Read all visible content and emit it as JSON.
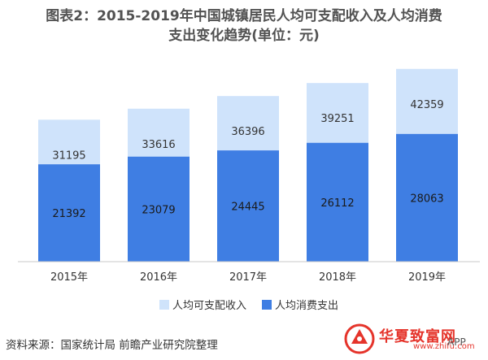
{
  "title": {
    "line1": "图表2：2015-2019年中国城镇居民人均可支配收入及人均消费",
    "line2": "支出变化趋势(单位：元)"
  },
  "chart_data": {
    "type": "bar",
    "categories": [
      "2015年",
      "2016年",
      "2017年",
      "2018年",
      "2019年"
    ],
    "series": [
      {
        "name": "人均可支配收入",
        "values": [
          31195,
          33616,
          36396,
          39251,
          42359
        ],
        "color": "#cfe3fb"
      },
      {
        "name": "人均消费支出",
        "values": [
          21392,
          23079,
          24445,
          26112,
          28063
        ],
        "color": "#3f7ee3"
      }
    ],
    "ylim": [
      0,
      45000
    ],
    "legend_position": "bottom",
    "grid": false,
    "overlap": true
  },
  "footer": {
    "source": "资料来源：国家统计局 前瞻产业研究院整理",
    "brand": "华夏致富网",
    "brand_sub": "www.zhifu.com",
    "app": "APP"
  }
}
